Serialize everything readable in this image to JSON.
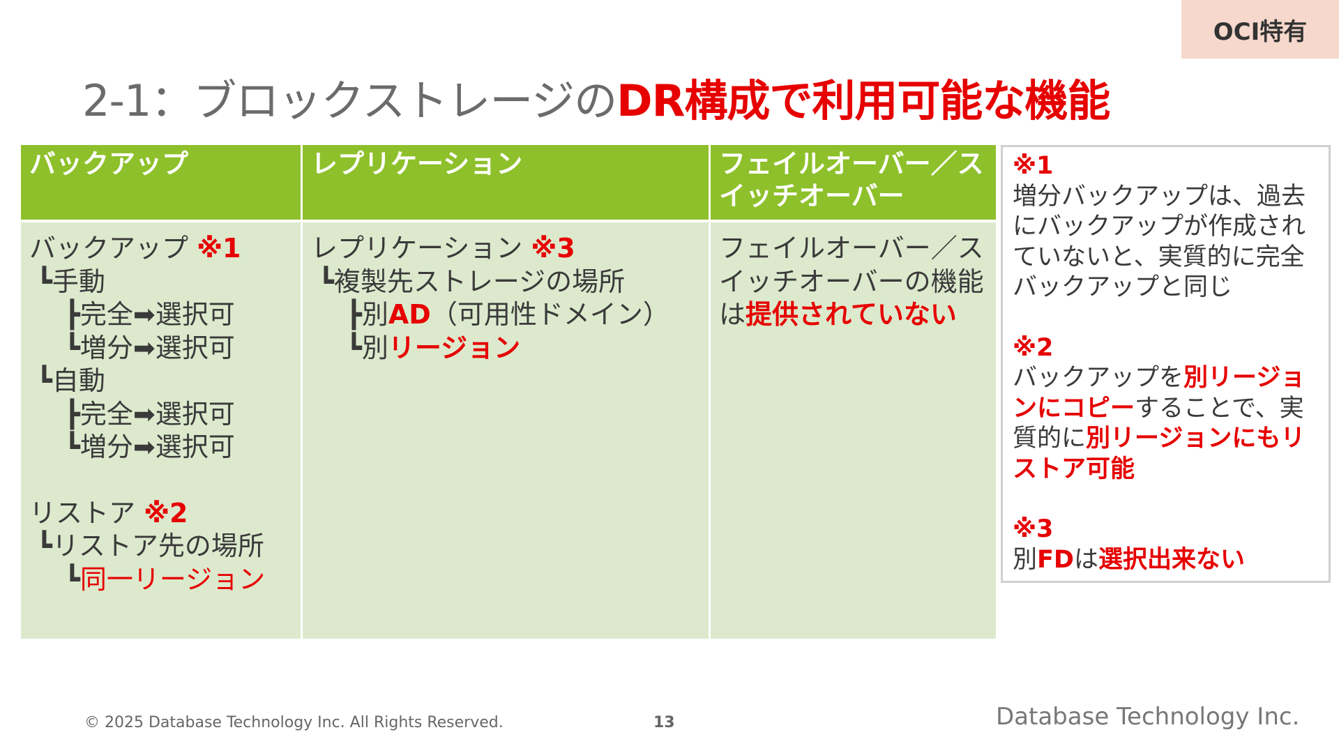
{
  "badge": "OCI特有",
  "title": {
    "prefix": "2-1：ブロックストレージの",
    "highlight": "DR構成で利用可能な機能"
  },
  "table": {
    "headers": [
      "バックアップ",
      "レプリケーション",
      "フェイルオーバー／スイッチオーバー"
    ],
    "backup": {
      "title": "バックアップ",
      "mark": "※1",
      "manual": "┗手動",
      "manual_full": "┣完全➡選択可",
      "manual_incr": "┗増分➡選択可",
      "auto": "┗自動",
      "auto_full": "┣完全➡選択可",
      "auto_incr": "┗増分➡選択可",
      "restore_title": "リストア",
      "restore_mark": "※2",
      "restore_location": "┗リストア先の場所",
      "restore_prefix": "┗",
      "restore_same_region": "同一リージョン"
    },
    "replication": {
      "title": "レプリケーション",
      "mark": "※3",
      "location": "┗複製先ストレージの場所",
      "ad_prefix": "┣別",
      "ad_code": "AD",
      "ad_suffix": "（可用性ドメイン）",
      "region_prefix": "┗別",
      "region": "リージョン"
    },
    "failover": {
      "text_part1": "フェイルオーバー／スイッチオーバーの機能は",
      "text_bold": "提供されていない"
    }
  },
  "notes": [
    {
      "mark": "※1",
      "text": "増分バックアップは、過去にバックアップが作成されていないと、実質的に完全バックアップと同じ"
    },
    {
      "mark": "※2",
      "t1": "バックアップを",
      "b1": "別リージョンにコピー",
      "t2": "することで、実質的に",
      "b2": "別リージョンにもリストア可能"
    },
    {
      "mark": "※3",
      "t1": "別",
      "b1": "FD",
      "t2": "は",
      "b2": "選択出来ない"
    }
  ],
  "footer": {
    "copyright": "© 2025 Database Technology Inc. All Rights Reserved.",
    "page": "13",
    "company": "Database Technology Inc."
  }
}
